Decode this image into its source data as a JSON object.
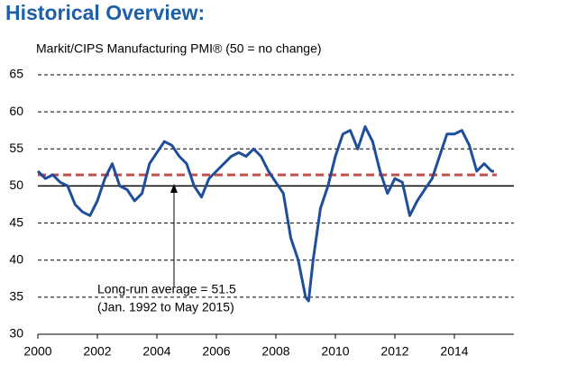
{
  "chart_data": {
    "type": "line",
    "title": "Historical Overview:",
    "subtitle": "Markit/CIPS Manufacturing PMI® (50 = no change)",
    "annotation": [
      "Long-run average = 51.5",
      "(Jan. 1992 to May 2015)"
    ],
    "average": 51.5,
    "average_color": "#c0504d",
    "solid_gridline": 50,
    "grid": true,
    "xlim": [
      2000,
      2016
    ],
    "xticks": [
      2000,
      2002,
      2004,
      2006,
      2008,
      2010,
      2012,
      2014
    ],
    "ylim": [
      30,
      65
    ],
    "yticks": [
      30,
      35,
      40,
      45,
      50,
      55,
      60,
      65
    ],
    "x": [
      2000,
      2000.25,
      2000.5,
      2000.75,
      2001,
      2001.25,
      2001.5,
      2001.75,
      2002,
      2002.25,
      2002.5,
      2002.75,
      2003,
      2003.25,
      2003.5,
      2003.75,
      2004,
      2004.25,
      2004.5,
      2004.75,
      2005,
      2005.25,
      2005.5,
      2005.75,
      2006,
      2006.25,
      2006.5,
      2006.75,
      2007,
      2007.25,
      2007.5,
      2007.75,
      2008,
      2008.25,
      2008.5,
      2008.75,
      2009,
      2009.1,
      2009.25,
      2009.5,
      2009.75,
      2010,
      2010.25,
      2010.5,
      2010.75,
      2011,
      2011.25,
      2011.5,
      2011.75,
      2012,
      2012.25,
      2012.5,
      2012.75,
      2013,
      2013.25,
      2013.5,
      2013.75,
      2014,
      2014.25,
      2014.5,
      2014.75,
      2015,
      2015.25,
      2015.33
    ],
    "series": [
      {
        "name": "Markit/CIPS Manufacturing PMI",
        "color": "#1f4e9a",
        "values": [
          52,
          51,
          51.5,
          50.5,
          50,
          47.5,
          46.5,
          46,
          48,
          51,
          53,
          50,
          49.5,
          48,
          49,
          53,
          54.5,
          56,
          55.5,
          54,
          53,
          50,
          48.5,
          51,
          52,
          53,
          54,
          54.5,
          54,
          55,
          54,
          52,
          50.5,
          49,
          43,
          40,
          35,
          34.5,
          40,
          47,
          50,
          54,
          57,
          57.5,
          55,
          58,
          56,
          52,
          49,
          51,
          50.5,
          46,
          48,
          49.5,
          51,
          54,
          57,
          57,
          57.5,
          55.5,
          52,
          53,
          52,
          52
        ]
      }
    ]
  }
}
